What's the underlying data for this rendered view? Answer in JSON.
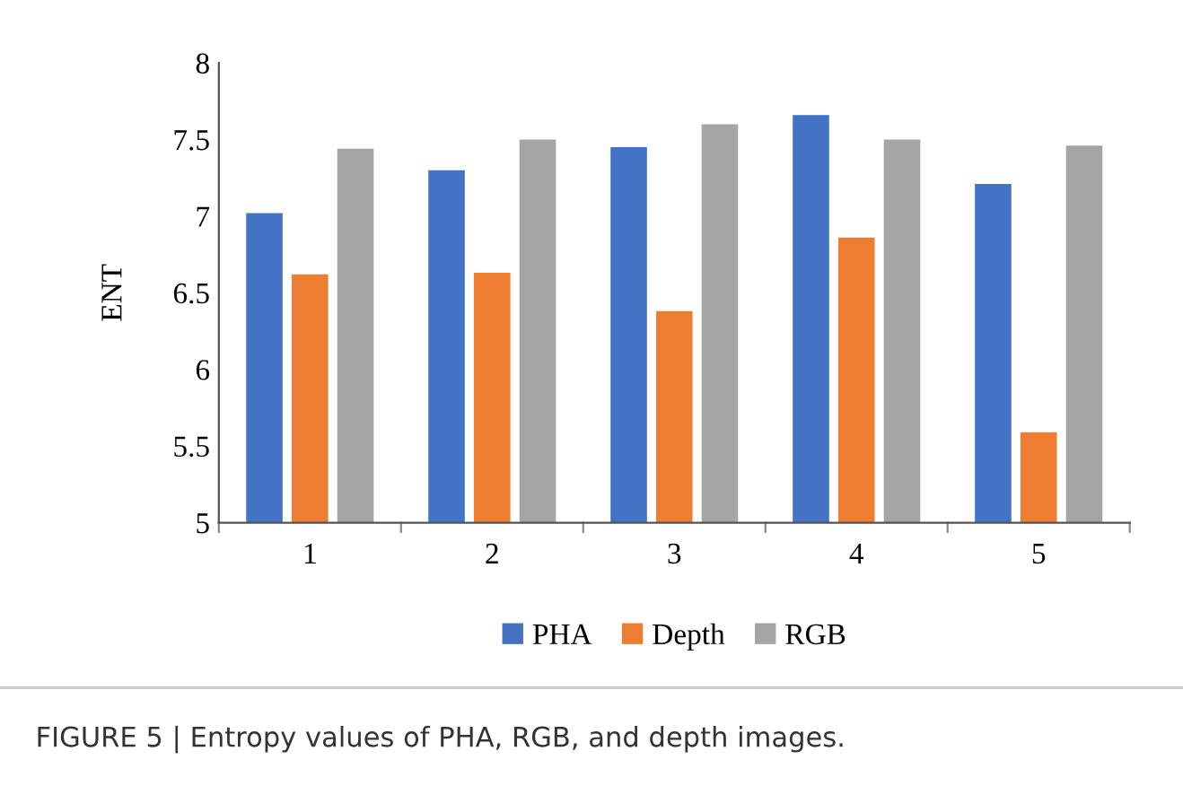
{
  "chart_data": {
    "type": "bar",
    "ylabel": "ENT",
    "categories": [
      "1",
      "2",
      "3",
      "4",
      "5"
    ],
    "series": [
      {
        "name": "PHA",
        "color": "#4472c4",
        "values": [
          7.02,
          7.3,
          7.45,
          7.66,
          7.21
        ]
      },
      {
        "name": "Depth",
        "color": "#ed7d31",
        "values": [
          6.62,
          6.63,
          6.38,
          6.86,
          5.59
        ]
      },
      {
        "name": "RGB",
        "color": "#a5a5a5",
        "values": [
          7.44,
          7.5,
          7.6,
          7.5,
          7.46
        ]
      }
    ],
    "ylim": [
      5,
      8
    ],
    "yticks": [
      5,
      {
        "value": 5.5,
        "label": "5.5"
      },
      6,
      {
        "value": 6.5,
        "label": "6.5"
      },
      7,
      {
        "value": 7.5,
        "label": "7.5"
      },
      8
    ],
    "grid": false,
    "legend": "bottom",
    "annotations": [
      "FIGURE 5 | Entropy values of PHA, RGB, and depth images."
    ]
  }
}
